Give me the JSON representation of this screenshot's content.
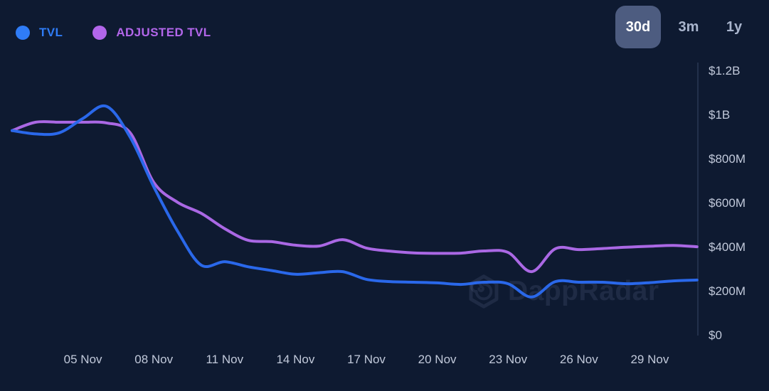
{
  "app": {
    "background": "#0e1a31"
  },
  "legend": {
    "items": [
      {
        "label": "TVL",
        "color": "#2f7cf6"
      },
      {
        "label": "ADJUSTED TVL",
        "color": "#b266ea"
      }
    ]
  },
  "range_selector": {
    "options": [
      {
        "label": "30d",
        "active": true
      },
      {
        "label": "3m",
        "active": false
      },
      {
        "label": "1y",
        "active": false
      }
    ],
    "active_background": "#4d5c80"
  },
  "watermark": {
    "text": "DappRadar",
    "logo": "dappradar-hexagon-spiral-logo"
  },
  "chart_data": {
    "type": "line",
    "title": "",
    "xlabel": "",
    "ylabel": "",
    "grid": false,
    "legend_position": "top-left",
    "x": [
      "02 Nov",
      "03 Nov",
      "04 Nov",
      "05 Nov",
      "06 Nov",
      "07 Nov",
      "08 Nov",
      "09 Nov",
      "10 Nov",
      "11 Nov",
      "12 Nov",
      "13 Nov",
      "14 Nov",
      "15 Nov",
      "16 Nov",
      "17 Nov",
      "18 Nov",
      "19 Nov",
      "20 Nov",
      "21 Nov",
      "22 Nov",
      "23 Nov",
      "24 Nov",
      "25 Nov",
      "26 Nov",
      "27 Nov",
      "28 Nov",
      "29 Nov",
      "30 Nov",
      "01 Dec"
    ],
    "series": [
      {
        "name": "TVL",
        "color": "#2a68ea",
        "values_musd": [
          930,
          915,
          920,
          985,
          1040,
          900,
          675,
          475,
          320,
          335,
          312,
          295,
          278,
          285,
          290,
          255,
          245,
          242,
          239,
          232,
          242,
          235,
          175,
          245,
          242,
          242,
          235,
          240,
          248,
          252
        ]
      },
      {
        "name": "ADJUSTED TVL",
        "color": "#aa68e4",
        "values_musd": [
          930,
          968,
          968,
          968,
          965,
          920,
          695,
          605,
          555,
          485,
          432,
          426,
          410,
          406,
          435,
          397,
          383,
          375,
          373,
          374,
          384,
          377,
          290,
          394,
          390,
          395,
          401,
          405,
          409,
          403
        ]
      }
    ],
    "y_ticks": [
      {
        "label": "$1.2B",
        "value_musd": 1200
      },
      {
        "label": "$1B",
        "value_musd": 1000
      },
      {
        "label": "$800M",
        "value_musd": 800
      },
      {
        "label": "$600M",
        "value_musd": 600
      },
      {
        "label": "$400M",
        "value_musd": 400
      },
      {
        "label": "$200M",
        "value_musd": 200
      },
      {
        "label": "$0",
        "value_musd": 0
      }
    ],
    "x_ticks": [
      "05 Nov",
      "08 Nov",
      "11 Nov",
      "14 Nov",
      "17 Nov",
      "20 Nov",
      "23 Nov",
      "26 Nov",
      "29 Nov"
    ],
    "ylim_musd": [
      0,
      1200
    ]
  }
}
